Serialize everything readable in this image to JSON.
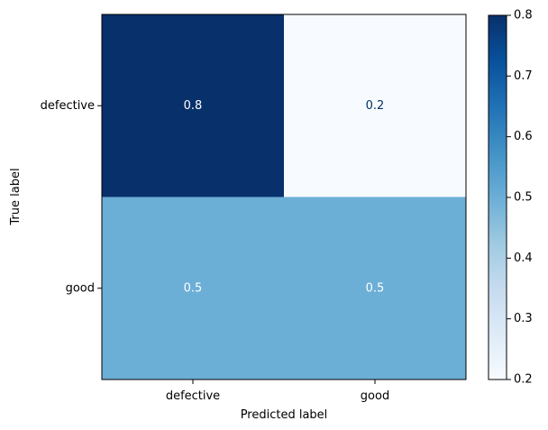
{
  "chart_data": {
    "type": "heatmap",
    "title": "",
    "xlabel": "Predicted label",
    "ylabel": "True label",
    "x_categories": [
      "defective",
      "good"
    ],
    "y_categories": [
      "defective",
      "good"
    ],
    "values": [
      [
        0.8,
        0.2
      ],
      [
        0.5,
        0.5
      ]
    ],
    "value_labels": [
      [
        "0.8",
        "0.2"
      ],
      [
        "0.5",
        "0.5"
      ]
    ],
    "colormap": "Blues",
    "color_range": [
      0.2,
      0.8
    ],
    "colorbar": {
      "ticks": [
        0.2,
        0.3,
        0.4,
        0.5,
        0.6,
        0.7,
        0.8
      ],
      "tick_labels": [
        "0.2",
        "0.3",
        "0.4",
        "0.5",
        "0.6",
        "0.7",
        "0.8"
      ]
    },
    "grid": false,
    "text_colors": {
      "on_dark": "#ffffff",
      "on_light": "#08306b"
    }
  }
}
